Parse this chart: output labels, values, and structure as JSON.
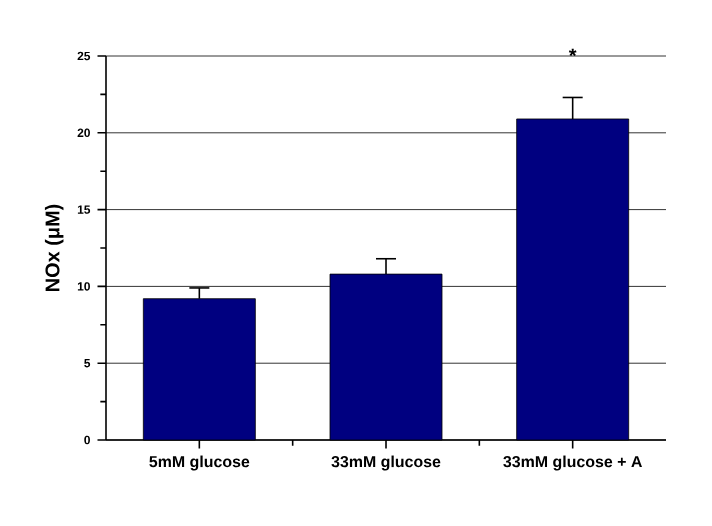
{
  "chart_data": {
    "type": "bar",
    "categories": [
      "5mM glucose",
      "33mM glucose",
      "33mM glucose + A"
    ],
    "values": [
      9.2,
      10.8,
      20.9
    ],
    "errors": [
      0.7,
      1.0,
      1.4
    ],
    "color": "#000080",
    "ylabel": "NOx (μM)",
    "ylim": [
      0,
      25
    ],
    "yticks": [
      0,
      5,
      10,
      15,
      20,
      25
    ],
    "grid": "y",
    "annotations": [
      "*"
    ]
  }
}
